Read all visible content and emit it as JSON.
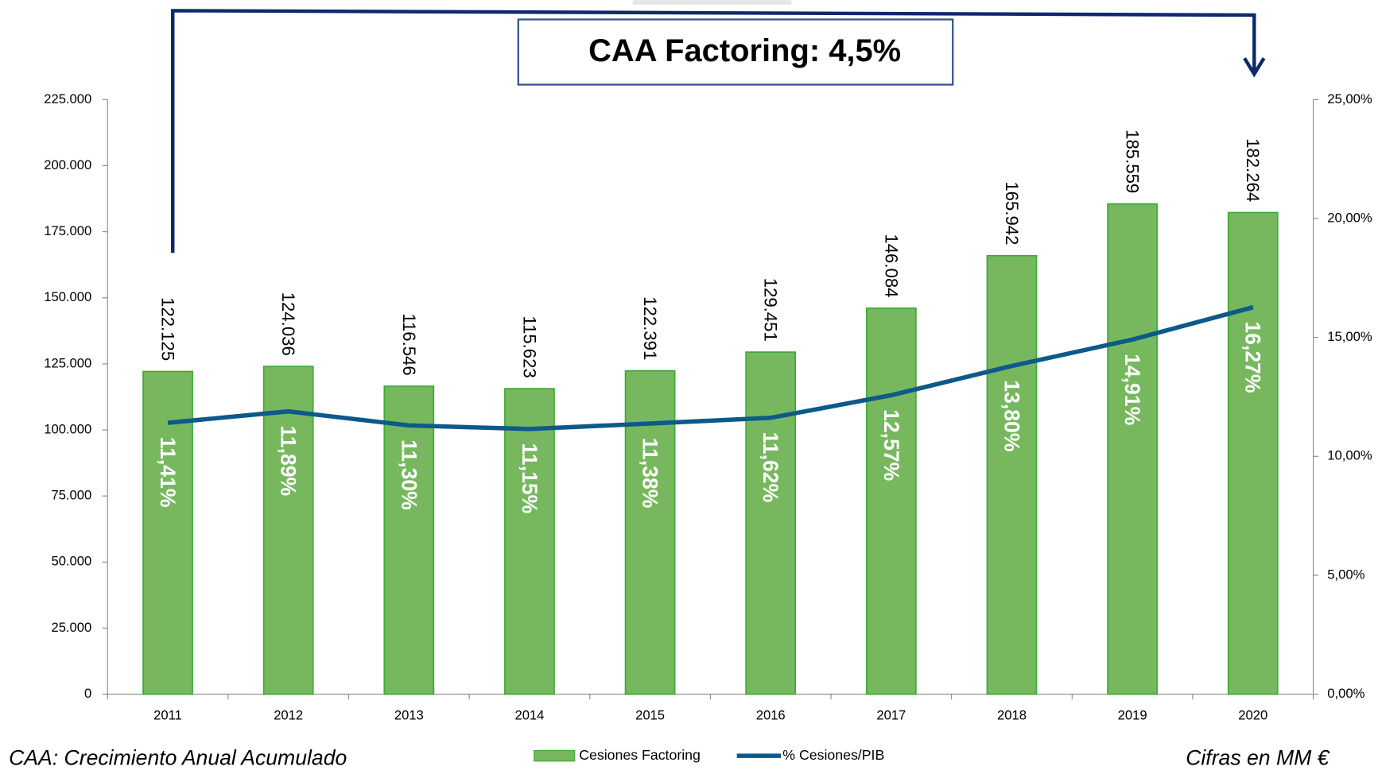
{
  "chart_data": {
    "type": "bar",
    "annotation": "CAA Factoring: 4,5%",
    "note_left": "CAA: Crecimiento Anual Acumulado",
    "note_right": "Cifras en MM €",
    "categories": [
      "2011",
      "2012",
      "2013",
      "2014",
      "2015",
      "2016",
      "2017",
      "2018",
      "2019",
      "2020"
    ],
    "series": [
      {
        "name": "Cesiones Factoring",
        "color": "#77b85f",
        "type": "bar",
        "values": [
          122125,
          124036,
          116546,
          115623,
          122391,
          129451,
          146084,
          165942,
          185559,
          182264
        ],
        "value_labels": [
          "122.125",
          "124.036",
          "116.546",
          "115.623",
          "122.391",
          "129.451",
          "146.084",
          "165.942",
          "185.559",
          "182.264"
        ]
      },
      {
        "name": "% Cesiones/PIB",
        "color": "#0d5a8a",
        "type": "line",
        "axis": "y2",
        "values": [
          11.41,
          11.89,
          11.3,
          11.15,
          11.38,
          11.62,
          12.57,
          13.8,
          14.91,
          16.27
        ],
        "value_labels": [
          "11,41%",
          "11,89%",
          "11,30%",
          "11,15%",
          "11,38%",
          "11,62%",
          "12,57%",
          "13,80%",
          "14,91%",
          "16,27%"
        ]
      }
    ],
    "ylim": [
      0,
      225000
    ],
    "yticks": [
      0,
      {
        "value": 25000,
        "label": "25.000"
      },
      {
        "value": 50000,
        "label": "50.000"
      },
      {
        "value": 75000,
        "label": "75.000"
      },
      {
        "value": 100000,
        "label": "100.000"
      },
      {
        "value": 125000,
        "label": "125.000"
      },
      {
        "value": 150000,
        "label": "150.000"
      },
      {
        "value": 175000,
        "label": "175.000"
      },
      {
        "value": 200000,
        "label": "200.000"
      },
      {
        "value": 225000,
        "label": "225.000"
      }
    ],
    "y2lim": [
      0,
      25
    ],
    "y2ticks": [
      {
        "value": 0,
        "label": "0,00%"
      },
      {
        "value": 5,
        "label": "5,00%"
      },
      {
        "value": 10,
        "label": "10,00%"
      },
      {
        "value": 15,
        "label": "15,00%"
      },
      {
        "value": 20,
        "label": "20,00%"
      },
      {
        "value": 25,
        "label": "25,00%"
      }
    ],
    "legend": "bottom"
  }
}
